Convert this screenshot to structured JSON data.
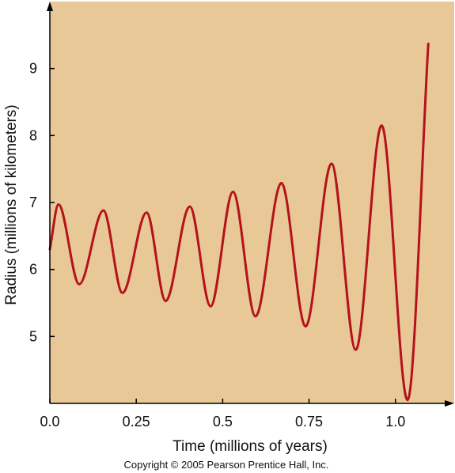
{
  "chart_data": {
    "type": "line",
    "xlabel": "Time (millions of years)",
    "ylabel": "Radius (millions of kilometers)",
    "xlim": [
      0.0,
      1.17
    ],
    "ylim": [
      4.0,
      10.0
    ],
    "x_ticks": [
      {
        "value": 0.0,
        "label": "0.0"
      },
      {
        "value": 0.25,
        "label": "0.25"
      },
      {
        "value": 0.5,
        "label": "0.5"
      },
      {
        "value": 0.75,
        "label": "0.75"
      },
      {
        "value": 1.0,
        "label": "1.0"
      }
    ],
    "y_ticks": [
      {
        "value": 5,
        "label": "5"
      },
      {
        "value": 6,
        "label": "6"
      },
      {
        "value": 7,
        "label": "7"
      },
      {
        "value": 8,
        "label": "8"
      },
      {
        "value": 9,
        "label": "9"
      }
    ],
    "background_color": "#E8C896",
    "line_color": "#B5121B",
    "grid": false,
    "series": [
      {
        "points": [
          [
            0.0,
            6.3
          ],
          [
            0.025,
            6.97
          ],
          [
            0.085,
            5.78
          ],
          [
            0.155,
            6.88
          ],
          [
            0.21,
            5.65
          ],
          [
            0.28,
            6.85
          ],
          [
            0.335,
            5.53
          ],
          [
            0.405,
            6.94
          ],
          [
            0.465,
            5.45
          ],
          [
            0.53,
            7.16
          ],
          [
            0.595,
            5.3
          ],
          [
            0.67,
            7.29
          ],
          [
            0.74,
            5.15
          ],
          [
            0.815,
            7.58
          ],
          [
            0.885,
            4.8
          ],
          [
            0.96,
            8.15
          ],
          [
            1.035,
            4.05
          ],
          [
            1.095,
            9.37
          ]
        ]
      }
    ]
  },
  "copyright": "Copyright © 2005 Pearson Prentice Hall, Inc."
}
